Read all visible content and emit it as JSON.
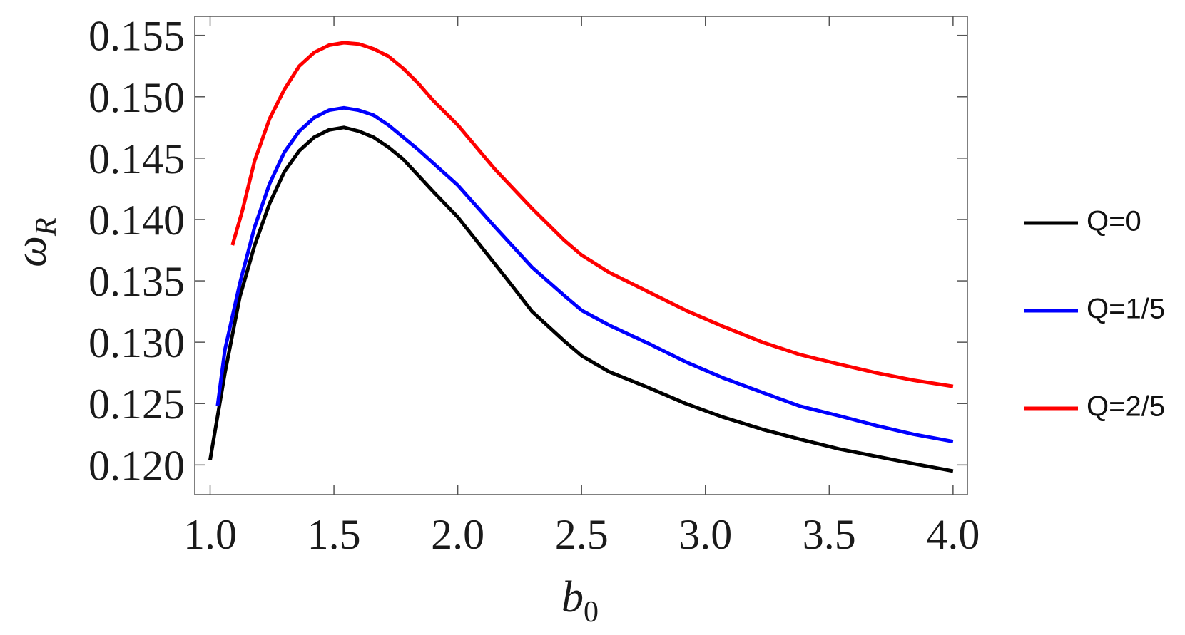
{
  "chart_data": {
    "type": "line",
    "x_label": "b0",
    "y_label": "ωR",
    "xlim": [
      0.938,
      4.058
    ],
    "ylim": [
      0.11758,
      0.15655
    ],
    "xticks": [
      {
        "value": 1.0,
        "label": "1.0"
      },
      {
        "value": 1.5,
        "label": "1.5"
      },
      {
        "value": 2.0,
        "label": "2.0"
      },
      {
        "value": 2.5,
        "label": "2.5"
      },
      {
        "value": 3.0,
        "label": "3.0"
      },
      {
        "value": 3.5,
        "label": "3.5"
      },
      {
        "value": 4.0,
        "label": "4.0"
      }
    ],
    "yticks": [
      {
        "value": 0.12,
        "label": "0.120"
      },
      {
        "value": 0.125,
        "label": "0.125"
      },
      {
        "value": 0.13,
        "label": "0.130"
      },
      {
        "value": 0.135,
        "label": "0.135"
      },
      {
        "value": 0.14,
        "label": "0.140"
      },
      {
        "value": 0.145,
        "label": "0.145"
      },
      {
        "value": 0.15,
        "label": "0.150"
      },
      {
        "value": 0.155,
        "label": "0.155"
      }
    ],
    "legend": "right",
    "series": [
      {
        "name": "Q=0",
        "color": "#000000",
        "x": [
          1.0,
          1.06,
          1.12,
          1.18,
          1.24,
          1.3,
          1.36,
          1.42,
          1.48,
          1.54,
          1.6,
          1.66,
          1.72,
          1.78,
          1.84,
          1.9,
          2.0,
          2.09,
          2.2,
          2.3,
          2.43,
          2.5,
          2.61,
          2.77,
          2.92,
          3.07,
          3.23,
          3.38,
          3.54,
          3.69,
          3.84,
          4.0
        ],
        "values": [
          0.1204,
          0.1275,
          0.1337,
          0.1379,
          0.1413,
          0.1439,
          0.1456,
          0.1467,
          0.1473,
          0.1475,
          0.1472,
          0.1467,
          0.1459,
          0.1449,
          0.1436,
          0.1423,
          0.1402,
          0.1379,
          0.1351,
          0.1325,
          0.1301,
          0.1289,
          0.1276,
          0.1263,
          0.125,
          0.1239,
          0.1229,
          0.1221,
          0.1213,
          0.1207,
          0.1201,
          0.1195
        ]
      },
      {
        "name": "Q=1/5",
        "color": "#0000ff",
        "x": [
          1.03,
          1.06,
          1.12,
          1.18,
          1.24,
          1.3,
          1.36,
          1.42,
          1.48,
          1.54,
          1.6,
          1.66,
          1.72,
          1.84,
          2.0,
          2.15,
          2.3,
          2.43,
          2.5,
          2.61,
          2.77,
          2.92,
          3.07,
          3.23,
          3.38,
          3.54,
          3.69,
          3.84,
          4.0
        ],
        "values": [
          0.1248,
          0.1294,
          0.1348,
          0.1394,
          0.1429,
          0.1455,
          0.1472,
          0.1483,
          0.1489,
          0.1491,
          0.1489,
          0.1485,
          0.1477,
          0.1457,
          0.1428,
          0.1394,
          0.1361,
          0.1338,
          0.1326,
          0.1314,
          0.1299,
          0.1284,
          0.1271,
          0.1259,
          0.1248,
          0.124,
          0.1232,
          0.1225,
          0.1219
        ]
      },
      {
        "name": "Q=2/5",
        "color": "#ff0000",
        "x": [
          1.09,
          1.13,
          1.18,
          1.24,
          1.3,
          1.36,
          1.42,
          1.48,
          1.54,
          1.6,
          1.66,
          1.72,
          1.78,
          1.84,
          1.9,
          2.0,
          2.15,
          2.3,
          2.43,
          2.5,
          2.61,
          2.77,
          2.92,
          3.07,
          3.23,
          3.38,
          3.54,
          3.69,
          3.84,
          4.0
        ],
        "values": [
          0.1379,
          0.1407,
          0.1448,
          0.1482,
          0.1506,
          0.1525,
          0.1536,
          0.1542,
          0.1544,
          0.1543,
          0.1539,
          0.1533,
          0.1523,
          0.1511,
          0.1497,
          0.1477,
          0.1441,
          0.1409,
          0.1383,
          0.1371,
          0.1357,
          0.1341,
          0.1326,
          0.1313,
          0.13,
          0.129,
          0.1282,
          0.1275,
          0.1269,
          0.1264
        ]
      }
    ]
  }
}
